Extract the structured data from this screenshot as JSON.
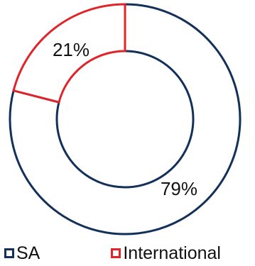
{
  "chart_data": {
    "type": "pie",
    "donut": true,
    "categories": [
      "SA",
      "International"
    ],
    "values": [
      79,
      21
    ],
    "labels": [
      "79%",
      "21%"
    ],
    "colors": [
      "#13305a",
      "#e0242a"
    ],
    "fill": "#ffffff",
    "title": "",
    "legend": {
      "position": "bottom",
      "entries": [
        "SA",
        "International"
      ]
    }
  }
}
